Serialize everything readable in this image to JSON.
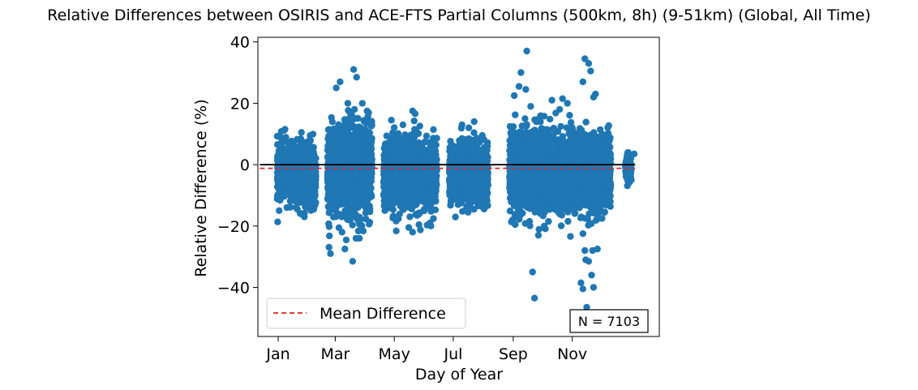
{
  "chart_data": {
    "type": "scatter",
    "title": "Relative Differences between OSIRIS and ACE-FTS Partial Columns (500km, 8h) (9-51km) (Global, All Time)",
    "xlabel": "Day of Year",
    "ylabel": "Relative Difference (%)",
    "xlim": [
      -20,
      395
    ],
    "ylim": [
      -56,
      41.5
    ],
    "x_ticks": [
      {
        "value": 1,
        "label": "Jan"
      },
      {
        "value": 60,
        "label": "Mar"
      },
      {
        "value": 121,
        "label": "May"
      },
      {
        "value": 182,
        "label": "Jul"
      },
      {
        "value": 244,
        "label": "Sep"
      },
      {
        "value": 305,
        "label": "Nov"
      }
    ],
    "y_ticks": [
      {
        "value": 40,
        "label": "40"
      },
      {
        "value": 20,
        "label": "20"
      },
      {
        "value": 0,
        "label": "0"
      },
      {
        "value": -20,
        "label": "−20"
      },
      {
        "value": -40,
        "label": "−40"
      }
    ],
    "zero_line": {
      "y": 0,
      "x_start": -18,
      "x_end": 370,
      "color": "#000000"
    },
    "mean_difference": {
      "y": -1.2,
      "x_start": -18,
      "x_end": 370,
      "color": "#d62728",
      "style": "dashed"
    },
    "legend": {
      "position": "lower-left",
      "label": "Mean Difference"
    },
    "annotation": {
      "position": "lower-right",
      "text": "N = 7103"
    },
    "series": [
      {
        "marker_color": "#1f77b4",
        "count": 7103,
        "clusters": [
          {
            "x_range": [
              0,
              40
            ],
            "y_mean": -3,
            "y_sd": 4.5
          },
          {
            "x_range": [
              52,
              98
            ],
            "y_mean": -2,
            "y_sd": 7.5
          },
          {
            "x_range": [
              110,
              165
            ],
            "y_mean": -3,
            "y_sd": 5.5
          },
          {
            "x_range": [
              178,
              218
            ],
            "y_mean": -3,
            "y_sd": 4.5
          },
          {
            "x_range": [
              240,
              280
            ],
            "y_mean": -2,
            "y_sd": 6.5
          },
          {
            "x_range": [
              280,
              345
            ],
            "y_mean": -3,
            "y_sd": 6.0
          },
          {
            "x_range": [
              360,
              366
            ],
            "y_mean": -1,
            "y_sd": 2.0
          }
        ],
        "points": [
          [
            3,
            9
          ],
          [
            8,
            11.5
          ],
          [
            25,
            10.5
          ],
          [
            2,
            -15
          ],
          [
            10,
            -14
          ],
          [
            28,
            -17
          ],
          [
            61,
            25
          ],
          [
            65,
            27
          ],
          [
            79,
            31
          ],
          [
            82,
            28.5
          ],
          [
            73,
            20
          ],
          [
            88,
            20
          ],
          [
            55,
            -29
          ],
          [
            70,
            -27.5
          ],
          [
            78,
            -31.5
          ],
          [
            85,
            -24
          ],
          [
            67,
            -22
          ],
          [
            140,
            17.5
          ],
          [
            118,
            14.5
          ],
          [
            130,
            13
          ],
          [
            136,
            -20.5
          ],
          [
            140,
            -22
          ],
          [
            158,
            -19
          ],
          [
            180,
            2.5
          ],
          [
            191,
            13
          ],
          [
            198,
            12
          ],
          [
            212,
            9.5
          ],
          [
            187,
            -13
          ],
          [
            209,
            -13
          ],
          [
            245,
            22.5
          ],
          [
            250,
            25.5
          ],
          [
            258,
            37
          ],
          [
            257,
            24.5
          ],
          [
            252,
            30
          ],
          [
            262,
            19
          ],
          [
            284,
            21
          ],
          [
            295,
            21.5
          ],
          [
            264,
            -35
          ],
          [
            266,
            -43.5
          ],
          [
            246,
            -19.5
          ],
          [
            270,
            -23
          ],
          [
            276,
            -20
          ],
          [
            300,
            20
          ],
          [
            305,
            12
          ],
          [
            318,
            34.5
          ],
          [
            322,
            33
          ],
          [
            324,
            30.5
          ],
          [
            316,
            27
          ],
          [
            329,
            23
          ],
          [
            327,
            22
          ],
          [
            314,
            -38.5
          ],
          [
            316,
            -40.5
          ],
          [
            319,
            -31
          ],
          [
            322,
            -31.5
          ],
          [
            325,
            -36
          ],
          [
            320,
            -46.5
          ],
          [
            321,
            -51
          ],
          [
            327,
            -40
          ],
          [
            331,
            -27.5
          ],
          [
            316,
            -22.5
          ],
          [
            318,
            -28
          ],
          [
            326,
            -28
          ],
          [
            369,
            3.5
          ],
          [
            366,
            -5
          ],
          [
            363,
            1
          ]
        ]
      }
    ]
  }
}
